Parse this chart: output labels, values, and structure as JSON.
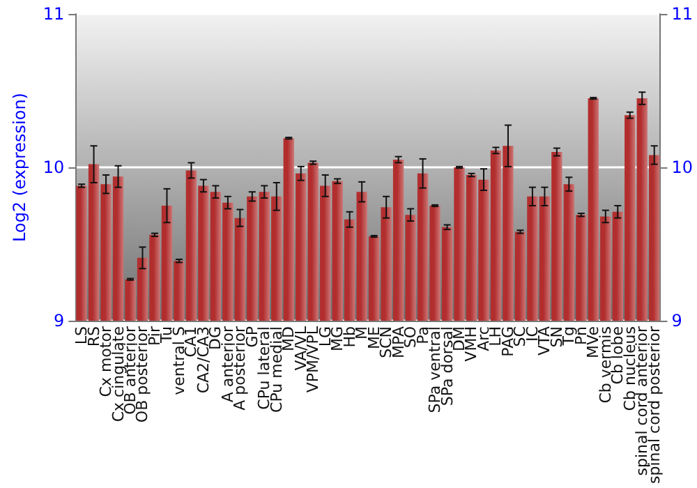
{
  "chart_data": {
    "type": "bar",
    "ylabel": "Log2 (expression)",
    "categories": [
      "LS",
      "RS",
      "Cx motor",
      "Cx cingulate",
      "OB anterior",
      "OB posterior",
      "Pir",
      "Tu",
      "ventral S",
      "CA1",
      "CA2/CA3",
      "DG",
      "A anterior",
      "A posterior",
      "GP",
      "CPu lateral",
      "CPu medial",
      "MD",
      "VA/VL",
      "VPM/VPL",
      "LG",
      "MG",
      "Hb",
      "M",
      "ME",
      "SCN",
      "MPA",
      "SO",
      "Pa",
      "SPa ventral",
      "SPa dorsal",
      "DM",
      "VMH",
      "Arc",
      "LH",
      "PAG",
      "SC",
      "IC",
      "VTA",
      "SN",
      "Tg",
      "Pn",
      "MVe",
      "Cb vermis",
      "Cb lobe",
      "Cb nucleus",
      "spinal cord anterior",
      "spinal cord posterior"
    ],
    "values": [
      9.88,
      10.02,
      9.89,
      9.94,
      9.27,
      9.41,
      9.56,
      9.75,
      9.39,
      9.98,
      9.88,
      9.84,
      9.77,
      9.67,
      9.81,
      9.84,
      9.81,
      10.19,
      9.96,
      10.03,
      9.88,
      9.91,
      9.66,
      9.84,
      9.55,
      9.74,
      10.05,
      9.69,
      9.96,
      9.75,
      9.61,
      10.0,
      9.95,
      9.92,
      10.11,
      10.14,
      9.58,
      9.81,
      9.81,
      10.1,
      9.89,
      9.69,
      10.45,
      9.68,
      9.71,
      10.34,
      10.45,
      10.08
    ],
    "errors": [
      0.01,
      0.12,
      0.06,
      0.07,
      0.005,
      0.07,
      0.01,
      0.11,
      0.01,
      0.05,
      0.04,
      0.04,
      0.04,
      0.055,
      0.03,
      0.04,
      0.09,
      0.005,
      0.045,
      0.01,
      0.07,
      0.015,
      0.05,
      0.065,
      0.005,
      0.07,
      0.02,
      0.04,
      0.095,
      0.005,
      0.015,
      0.005,
      0.01,
      0.07,
      0.02,
      0.135,
      0.01,
      0.06,
      0.06,
      0.025,
      0.045,
      0.01,
      0.005,
      0.04,
      0.04,
      0.02,
      0.04,
      0.06
    ],
    "color": "#b22e2e",
    "ylim": [
      9,
      11
    ],
    "yticks": [
      9,
      10,
      11
    ],
    "y2lim": [
      9,
      11
    ],
    "y2ticks": [
      9,
      10,
      11
    ],
    "grid": "y"
  }
}
